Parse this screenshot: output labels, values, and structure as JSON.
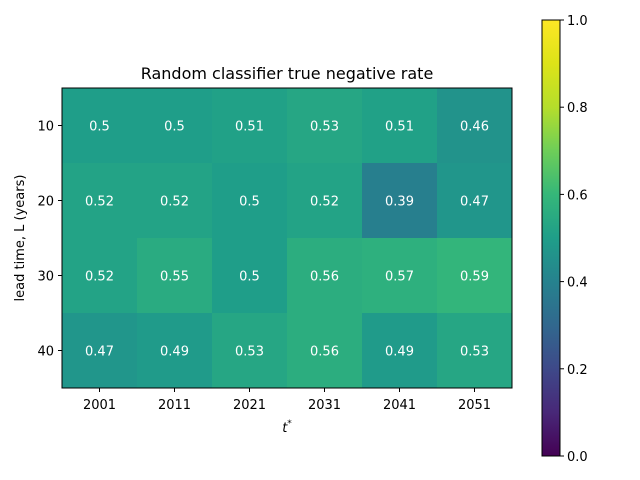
{
  "chart_data": {
    "type": "heatmap",
    "title": "Random classifier true negative rate",
    "xlabel": "t",
    "xlabel_superscript": "*",
    "ylabel": "lead time, L (years)",
    "x_categories": [
      "2001",
      "2011",
      "2021",
      "2031",
      "2041",
      "2051"
    ],
    "y_categories": [
      "10",
      "20",
      "30",
      "40"
    ],
    "values": [
      [
        0.5,
        0.5,
        0.51,
        0.53,
        0.51,
        0.46
      ],
      [
        0.52,
        0.52,
        0.5,
        0.52,
        0.39,
        0.47
      ],
      [
        0.52,
        0.55,
        0.5,
        0.56,
        0.57,
        0.59
      ],
      [
        0.47,
        0.49,
        0.53,
        0.56,
        0.49,
        0.53
      ]
    ],
    "value_labels": [
      [
        "0.5",
        "0.5",
        "0.51",
        "0.53",
        "0.51",
        "0.46"
      ],
      [
        "0.52",
        "0.52",
        "0.5",
        "0.52",
        "0.39",
        "0.47"
      ],
      [
        "0.52",
        "0.55",
        "0.5",
        "0.56",
        "0.57",
        "0.59"
      ],
      [
        "0.47",
        "0.49",
        "0.53",
        "0.56",
        "0.49",
        "0.53"
      ]
    ],
    "colormap": "viridis",
    "colorbar": {
      "range": [
        0,
        1
      ],
      "ticks": [
        "0.0",
        "0.2",
        "0.4",
        "0.6",
        "0.8",
        "1.0"
      ]
    },
    "grid": false
  }
}
